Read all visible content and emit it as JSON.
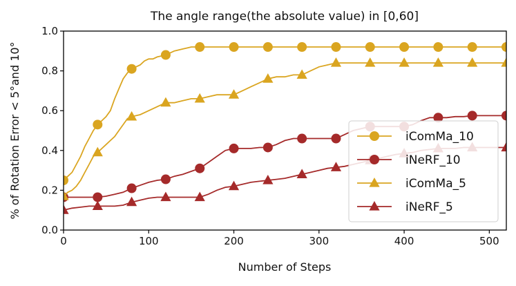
{
  "chart_data": {
    "type": "line",
    "title": "The angle range(the absolute value) in [0,60]",
    "xlabel": "Number of Steps",
    "ylabel": "% of Rotation Error < 5°and 10°",
    "xlim": [
      0,
      520
    ],
    "ylim": [
      0.0,
      1.0
    ],
    "xticks": [
      0,
      100,
      200,
      300,
      400,
      500
    ],
    "yticks": [
      0.0,
      0.2,
      0.4,
      0.6,
      0.8,
      1.0
    ],
    "xtick_labels": [
      "0",
      "100",
      "200",
      "300",
      "400",
      "500"
    ],
    "ytick_labels": [
      "0.0",
      "0.2",
      "0.4",
      "0.6",
      "0.8",
      "1.0"
    ],
    "grid": false,
    "legend_position": "right",
    "series": [
      {
        "name": "iComMa_10",
        "color": "#DAA520",
        "marker": "circle",
        "x": [
          0,
          5,
          10,
          15,
          20,
          25,
          30,
          35,
          40,
          45,
          50,
          55,
          60,
          65,
          70,
          75,
          80,
          85,
          90,
          95,
          100,
          105,
          110,
          115,
          120,
          125,
          130,
          135,
          140,
          145,
          150,
          155,
          160,
          200,
          240,
          280,
          320,
          360,
          400,
          440,
          480,
          520
        ],
        "y": [
          0.25,
          0.27,
          0.29,
          0.33,
          0.37,
          0.42,
          0.46,
          0.5,
          0.53,
          0.55,
          0.57,
          0.6,
          0.66,
          0.71,
          0.76,
          0.79,
          0.81,
          0.82,
          0.83,
          0.85,
          0.86,
          0.86,
          0.87,
          0.875,
          0.88,
          0.89,
          0.9,
          0.905,
          0.91,
          0.915,
          0.92,
          0.92,
          0.92,
          0.92,
          0.92,
          0.92,
          0.92,
          0.92,
          0.92,
          0.92,
          0.92,
          0.92
        ],
        "marker_x": [
          0,
          40,
          80,
          120,
          160,
          200,
          240,
          280,
          320,
          360,
          400,
          440,
          480,
          520
        ],
        "marker_y": [
          0.25,
          0.53,
          0.81,
          0.88,
          0.92,
          0.92,
          0.92,
          0.92,
          0.92,
          0.92,
          0.92,
          0.92,
          0.92,
          0.92
        ]
      },
      {
        "name": "iNeRF_10",
        "color": "#A52A2A",
        "marker": "circle",
        "x": [
          0,
          10,
          20,
          30,
          40,
          50,
          60,
          70,
          80,
          90,
          100,
          110,
          120,
          130,
          140,
          150,
          160,
          170,
          180,
          190,
          200,
          210,
          220,
          230,
          240,
          250,
          260,
          270,
          280,
          290,
          300,
          310,
          320,
          330,
          340,
          350,
          360,
          370,
          380,
          390,
          400,
          410,
          420,
          430,
          440,
          450,
          460,
          470,
          480,
          490,
          500,
          510,
          520
        ],
        "y": [
          0.165,
          0.165,
          0.165,
          0.165,
          0.165,
          0.17,
          0.18,
          0.19,
          0.21,
          0.225,
          0.24,
          0.25,
          0.255,
          0.27,
          0.28,
          0.295,
          0.31,
          0.34,
          0.37,
          0.4,
          0.41,
          0.41,
          0.41,
          0.415,
          0.415,
          0.43,
          0.45,
          0.46,
          0.46,
          0.46,
          0.46,
          0.46,
          0.46,
          0.48,
          0.5,
          0.51,
          0.52,
          0.52,
          0.52,
          0.52,
          0.52,
          0.53,
          0.55,
          0.565,
          0.565,
          0.565,
          0.57,
          0.57,
          0.575,
          0.575,
          0.575,
          0.575,
          0.575
        ],
        "marker_x": [
          0,
          40,
          80,
          120,
          160,
          200,
          240,
          280,
          320,
          360,
          400,
          440,
          480,
          520
        ],
        "marker_y": [
          0.165,
          0.165,
          0.21,
          0.255,
          0.31,
          0.41,
          0.415,
          0.46,
          0.46,
          0.52,
          0.52,
          0.565,
          0.575,
          0.575
        ]
      },
      {
        "name": "iComMa_5",
        "color": "#DAA520",
        "marker": "triangle",
        "x": [
          0,
          5,
          10,
          15,
          20,
          25,
          30,
          35,
          40,
          45,
          50,
          55,
          60,
          65,
          70,
          75,
          80,
          90,
          100,
          110,
          120,
          130,
          140,
          150,
          160,
          170,
          180,
          190,
          200,
          210,
          220,
          230,
          240,
          250,
          260,
          270,
          280,
          290,
          300,
          310,
          320,
          360,
          400,
          440,
          480,
          520
        ],
        "y": [
          0.17,
          0.19,
          0.2,
          0.22,
          0.25,
          0.29,
          0.33,
          0.37,
          0.39,
          0.41,
          0.43,
          0.45,
          0.47,
          0.5,
          0.53,
          0.56,
          0.57,
          0.58,
          0.6,
          0.62,
          0.64,
          0.64,
          0.65,
          0.66,
          0.66,
          0.67,
          0.68,
          0.68,
          0.68,
          0.7,
          0.72,
          0.74,
          0.76,
          0.77,
          0.77,
          0.78,
          0.78,
          0.8,
          0.82,
          0.83,
          0.84,
          0.84,
          0.84,
          0.84,
          0.84,
          0.84
        ],
        "marker_x": [
          0,
          40,
          80,
          120,
          160,
          200,
          240,
          280,
          320,
          360,
          400,
          440,
          480,
          520
        ],
        "marker_y": [
          0.17,
          0.39,
          0.57,
          0.64,
          0.66,
          0.68,
          0.76,
          0.78,
          0.84,
          0.84,
          0.84,
          0.84,
          0.84,
          0.84
        ]
      },
      {
        "name": "iNeRF_5",
        "color": "#A52A2A",
        "marker": "triangle",
        "x": [
          0,
          10,
          20,
          30,
          40,
          50,
          60,
          70,
          80,
          90,
          100,
          110,
          120,
          130,
          140,
          150,
          160,
          170,
          180,
          190,
          200,
          210,
          220,
          230,
          240,
          250,
          260,
          270,
          280,
          290,
          300,
          310,
          320,
          330,
          340,
          350,
          360,
          370,
          380,
          390,
          400,
          410,
          420,
          430,
          440,
          450,
          460,
          470,
          480,
          490,
          500,
          510,
          520
        ],
        "y": [
          0.1,
          0.11,
          0.115,
          0.12,
          0.12,
          0.12,
          0.12,
          0.125,
          0.14,
          0.15,
          0.16,
          0.165,
          0.165,
          0.165,
          0.165,
          0.165,
          0.165,
          0.18,
          0.2,
          0.215,
          0.22,
          0.23,
          0.24,
          0.245,
          0.25,
          0.255,
          0.26,
          0.27,
          0.28,
          0.29,
          0.3,
          0.31,
          0.315,
          0.32,
          0.33,
          0.34,
          0.35,
          0.36,
          0.37,
          0.38,
          0.385,
          0.39,
          0.4,
          0.405,
          0.41,
          0.41,
          0.41,
          0.415,
          0.415,
          0.415,
          0.415,
          0.415,
          0.415
        ],
        "marker_x": [
          0,
          40,
          80,
          120,
          160,
          200,
          240,
          280,
          320,
          360,
          400,
          440,
          480,
          520
        ],
        "marker_y": [
          0.1,
          0.12,
          0.14,
          0.165,
          0.165,
          0.22,
          0.25,
          0.28,
          0.315,
          0.35,
          0.385,
          0.41,
          0.415,
          0.415
        ]
      }
    ]
  }
}
